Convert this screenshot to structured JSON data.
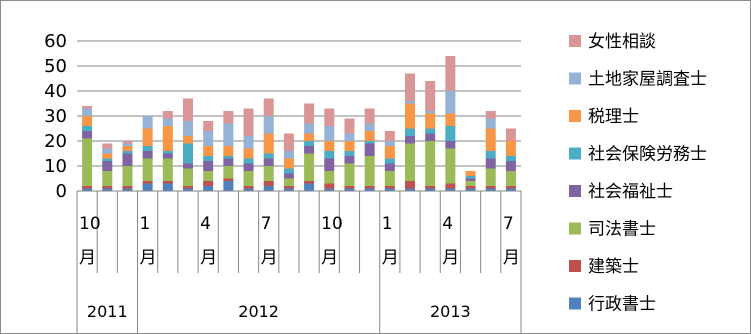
{
  "chart_data": {
    "type": "bar",
    "stacked": true,
    "ylim": [
      0,
      60
    ],
    "yticks": [
      0,
      10,
      20,
      30,
      40,
      50,
      60
    ],
    "grid": true,
    "legend_position": "right",
    "months": [
      10,
      11,
      12,
      1,
      2,
      3,
      4,
      5,
      6,
      7,
      8,
      9,
      10,
      11,
      12,
      1,
      2,
      3,
      4,
      5,
      6,
      7
    ],
    "x_month_labels": [
      {
        "index": 0,
        "num": "10",
        "suffix": "月"
      },
      {
        "index": 3,
        "num": "1",
        "suffix": "月"
      },
      {
        "index": 6,
        "num": "4",
        "suffix": "月"
      },
      {
        "index": 9,
        "num": "7",
        "suffix": "月"
      },
      {
        "index": 12,
        "num": "10",
        "suffix": "月"
      },
      {
        "index": 15,
        "num": "1",
        "suffix": "月"
      },
      {
        "index": 18,
        "num": "4",
        "suffix": "月"
      },
      {
        "index": 21,
        "num": "7",
        "suffix": "月"
      }
    ],
    "year_groups": [
      {
        "label": "2011",
        "start": 0,
        "end": 2
      },
      {
        "label": "2012",
        "start": 3,
        "end": 14
      },
      {
        "label": "2013",
        "start": 15,
        "end": 21
      }
    ],
    "series": [
      {
        "name": "行政書士",
        "color": "#4f81bd",
        "values": [
          1,
          1,
          1,
          3,
          3,
          1,
          2,
          4,
          1,
          2,
          1,
          3,
          1,
          1,
          1,
          1,
          1,
          1,
          1,
          1,
          1,
          1
        ]
      },
      {
        "name": "建築士",
        "color": "#c0504d",
        "values": [
          1,
          1,
          1,
          1,
          1,
          1,
          2,
          1,
          1,
          2,
          1,
          1,
          2,
          1,
          1,
          1,
          3,
          1,
          2,
          1,
          1,
          1
        ]
      },
      {
        "name": "司法書士",
        "color": "#9bbb59",
        "values": [
          19,
          6,
          8,
          9,
          9,
          7,
          4,
          5,
          6,
          6,
          3,
          11,
          5,
          9,
          12,
          6,
          15,
          18,
          14,
          2,
          7,
          6
        ]
      },
      {
        "name": "社会福祉士",
        "color": "#8064a2",
        "values": [
          3,
          4,
          5,
          3,
          2,
          2,
          4,
          3,
          3,
          3,
          2,
          3,
          5,
          3,
          5,
          3,
          3,
          3,
          3,
          1,
          4,
          4
        ]
      },
      {
        "name": "社会保険労務士",
        "color": "#4bacc6",
        "values": [
          2,
          1,
          1,
          2,
          1,
          8,
          2,
          1,
          2,
          2,
          2,
          2,
          3,
          2,
          1,
          2,
          3,
          2,
          6,
          1,
          3,
          2
        ]
      },
      {
        "name": "税理士",
        "color": "#f79646",
        "values": [
          4,
          2,
          2,
          7,
          10,
          3,
          4,
          4,
          4,
          8,
          4,
          3,
          4,
          4,
          4,
          5,
          10,
          6,
          5,
          2,
          9,
          6
        ]
      },
      {
        "name": "土地家屋調査士",
        "color": "#95b3d7",
        "values": [
          3,
          2,
          1,
          5,
          3,
          6,
          6,
          9,
          5,
          7,
          3,
          4,
          6,
          3,
          3,
          2,
          1,
          1,
          9,
          0,
          4,
          0
        ]
      },
      {
        "name": "女性相談",
        "color": "#d99694",
        "values": [
          1,
          2,
          1,
          0,
          3,
          9,
          4,
          5,
          11,
          7,
          7,
          8,
          7,
          6,
          6,
          4,
          11,
          12,
          14,
          0,
          3,
          5
        ]
      }
    ]
  }
}
